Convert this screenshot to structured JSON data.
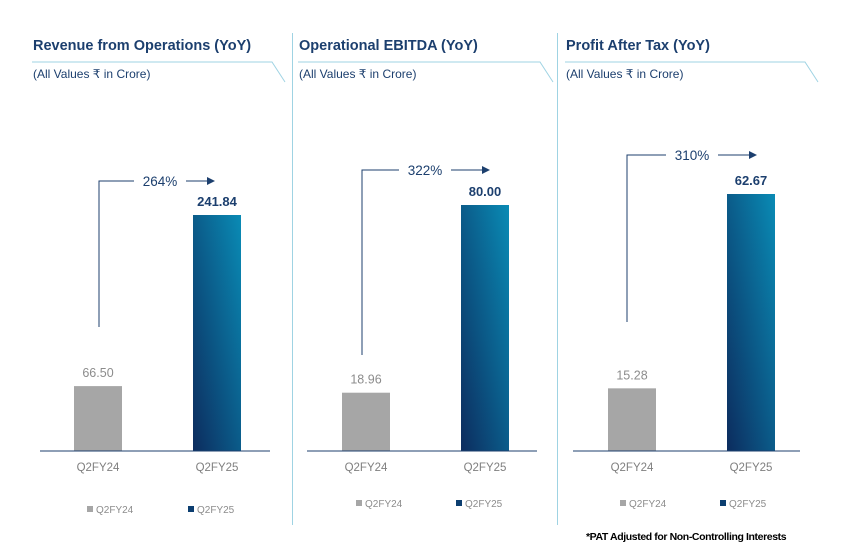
{
  "chart_data": [
    {
      "type": "bar",
      "title": "Revenue from Operations (YoY)",
      "subtitle": "(All Values ₹ in Crore)",
      "categories": [
        "Q2FY24",
        "Q2FY25"
      ],
      "values": [
        66.5,
        241.84
      ],
      "value_labels": [
        "66.50",
        "241.84"
      ],
      "growth_label": "264%",
      "legend": [
        "Q2FY24",
        "Q2FY25"
      ]
    },
    {
      "type": "bar",
      "title": "Operational EBITDA (YoY)",
      "subtitle": "(All Values ₹ in Crore)",
      "categories": [
        "Q2FY24",
        "Q2FY25"
      ],
      "values": [
        18.96,
        80.0
      ],
      "value_labels": [
        "18.96",
        "80.00"
      ],
      "growth_label": "322%",
      "legend": [
        "Q2FY24",
        "Q2FY25"
      ]
    },
    {
      "type": "bar",
      "title": "Profit After Tax (YoY)",
      "subtitle": "(All Values ₹ in Crore)",
      "categories": [
        "Q2FY24",
        "Q2FY25"
      ],
      "values": [
        15.28,
        62.67
      ],
      "value_labels": [
        "15.28",
        "62.67"
      ],
      "growth_label": "310%",
      "legend": [
        "Q2FY24",
        "Q2FY25"
      ]
    }
  ],
  "colors": {
    "prior": "#a6a6a6",
    "current_top": "#0a8bb5",
    "current_bottom": "#0c2c5e",
    "title": "#1c3f6e",
    "accent_line": "#9fd3e3"
  },
  "footnote": "*PAT Adjusted for Non-Controlling Interests"
}
